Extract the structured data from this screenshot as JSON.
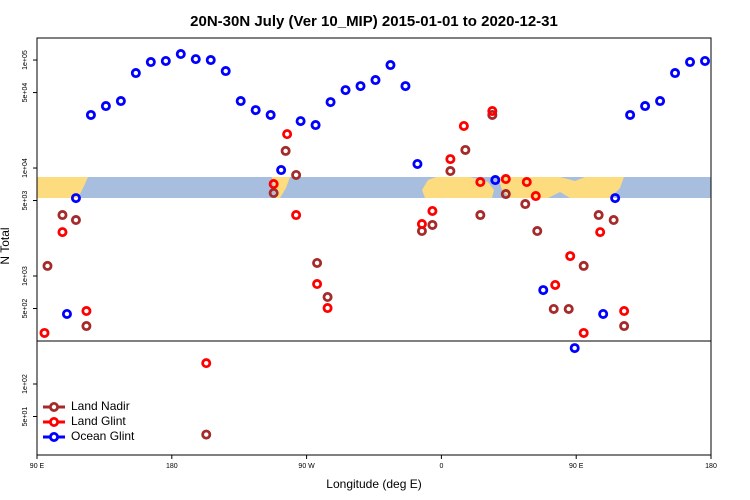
{
  "chart_data": {
    "type": "scatter",
    "title": "20N-30N July (Ver 10_MIP)   2015-01-01 to 2020-12-31",
    "x_label": "Longitude (deg E)",
    "y_label": "N Total",
    "xlim": [
      90,
      540
    ],
    "ylim": [
      22,
      160000
    ],
    "log_y": true,
    "xticks": [
      {
        "value": 90,
        "label": "90 E"
      },
      180,
      {
        "value": 270,
        "label": "90 W"
      },
      {
        "value": 360,
        "label": "0"
      },
      {
        "value": 450,
        "label": "90 E"
      },
      {
        "value": 540,
        "label": "180"
      }
    ],
    "yticks": [
      {
        "value": 50,
        "label": "5e+01"
      },
      {
        "value": 100,
        "label": "1e+02"
      },
      {
        "value": 500,
        "label": "5e+02"
      },
      {
        "value": 1000,
        "label": "1e+03"
      },
      {
        "value": 5000,
        "label": "5e+03"
      },
      {
        "value": 10000,
        "label": "1e+04"
      },
      {
        "value": 50000,
        "label": "5e+04"
      },
      {
        "value": 100000,
        "label": "1e+05"
      }
    ],
    "reference_line": 250,
    "legend": "lower left",
    "series": [
      {
        "name": "Land Nadir",
        "color": "#a52a2a",
        "x": [
          97,
          107,
          116,
          123,
          203,
          248,
          256,
          263,
          277,
          284,
          347,
          354,
          366,
          376,
          386,
          394,
          403,
          416,
          424,
          435,
          445,
          455,
          465,
          475,
          482
        ],
        "values": [
          1240,
          3670,
          3300,
          344,
          34,
          5870,
          14400,
          8620,
          1320,
          639,
          2610,
          2970,
          9380,
          14700,
          3670,
          31000,
          5740,
          4640,
          2610,
          495,
          495,
          1240,
          3670,
          3300,
          344
        ]
      },
      {
        "name": "Land Glint",
        "color": "#ff0000",
        "x": [
          95,
          107,
          123,
          203,
          248,
          257,
          263,
          277,
          284,
          347,
          354,
          366,
          375,
          386,
          394,
          403,
          417,
          423,
          436,
          446,
          455,
          466,
          482
        ],
        "values": [
          297,
          2550,
          474,
          156,
          7110,
          20600,
          3670,
          843,
          505,
          3030,
          4000,
          12100,
          24500,
          7420,
          33700,
          7910,
          7420,
          5500,
          826,
          1530,
          297,
          2550,
          474
        ]
      },
      {
        "name": "Ocean Glint",
        "color": "#0000ff",
        "x": [
          110,
          116,
          126,
          136,
          146,
          156,
          166,
          176,
          186,
          196,
          206,
          216,
          226,
          236,
          246,
          253,
          266,
          276,
          286,
          296,
          306,
          316,
          326,
          336,
          344,
          396,
          428,
          449,
          468,
          476,
          486,
          496,
          506,
          516,
          526,
          536
        ],
        "values": [
          445,
          5270,
          31000,
          37500,
          41700,
          75800,
          95800,
          98000,
          113700,
          102000,
          100000,
          79100,
          41700,
          34400,
          31000,
          9580,
          27200,
          25000,
          40800,
          52700,
          57400,
          65300,
          89900,
          57400,
          10900,
          7740,
          741,
          215,
          445,
          5270,
          31000,
          37500,
          41700,
          75800,
          95800,
          98000
        ]
      }
    ]
  }
}
